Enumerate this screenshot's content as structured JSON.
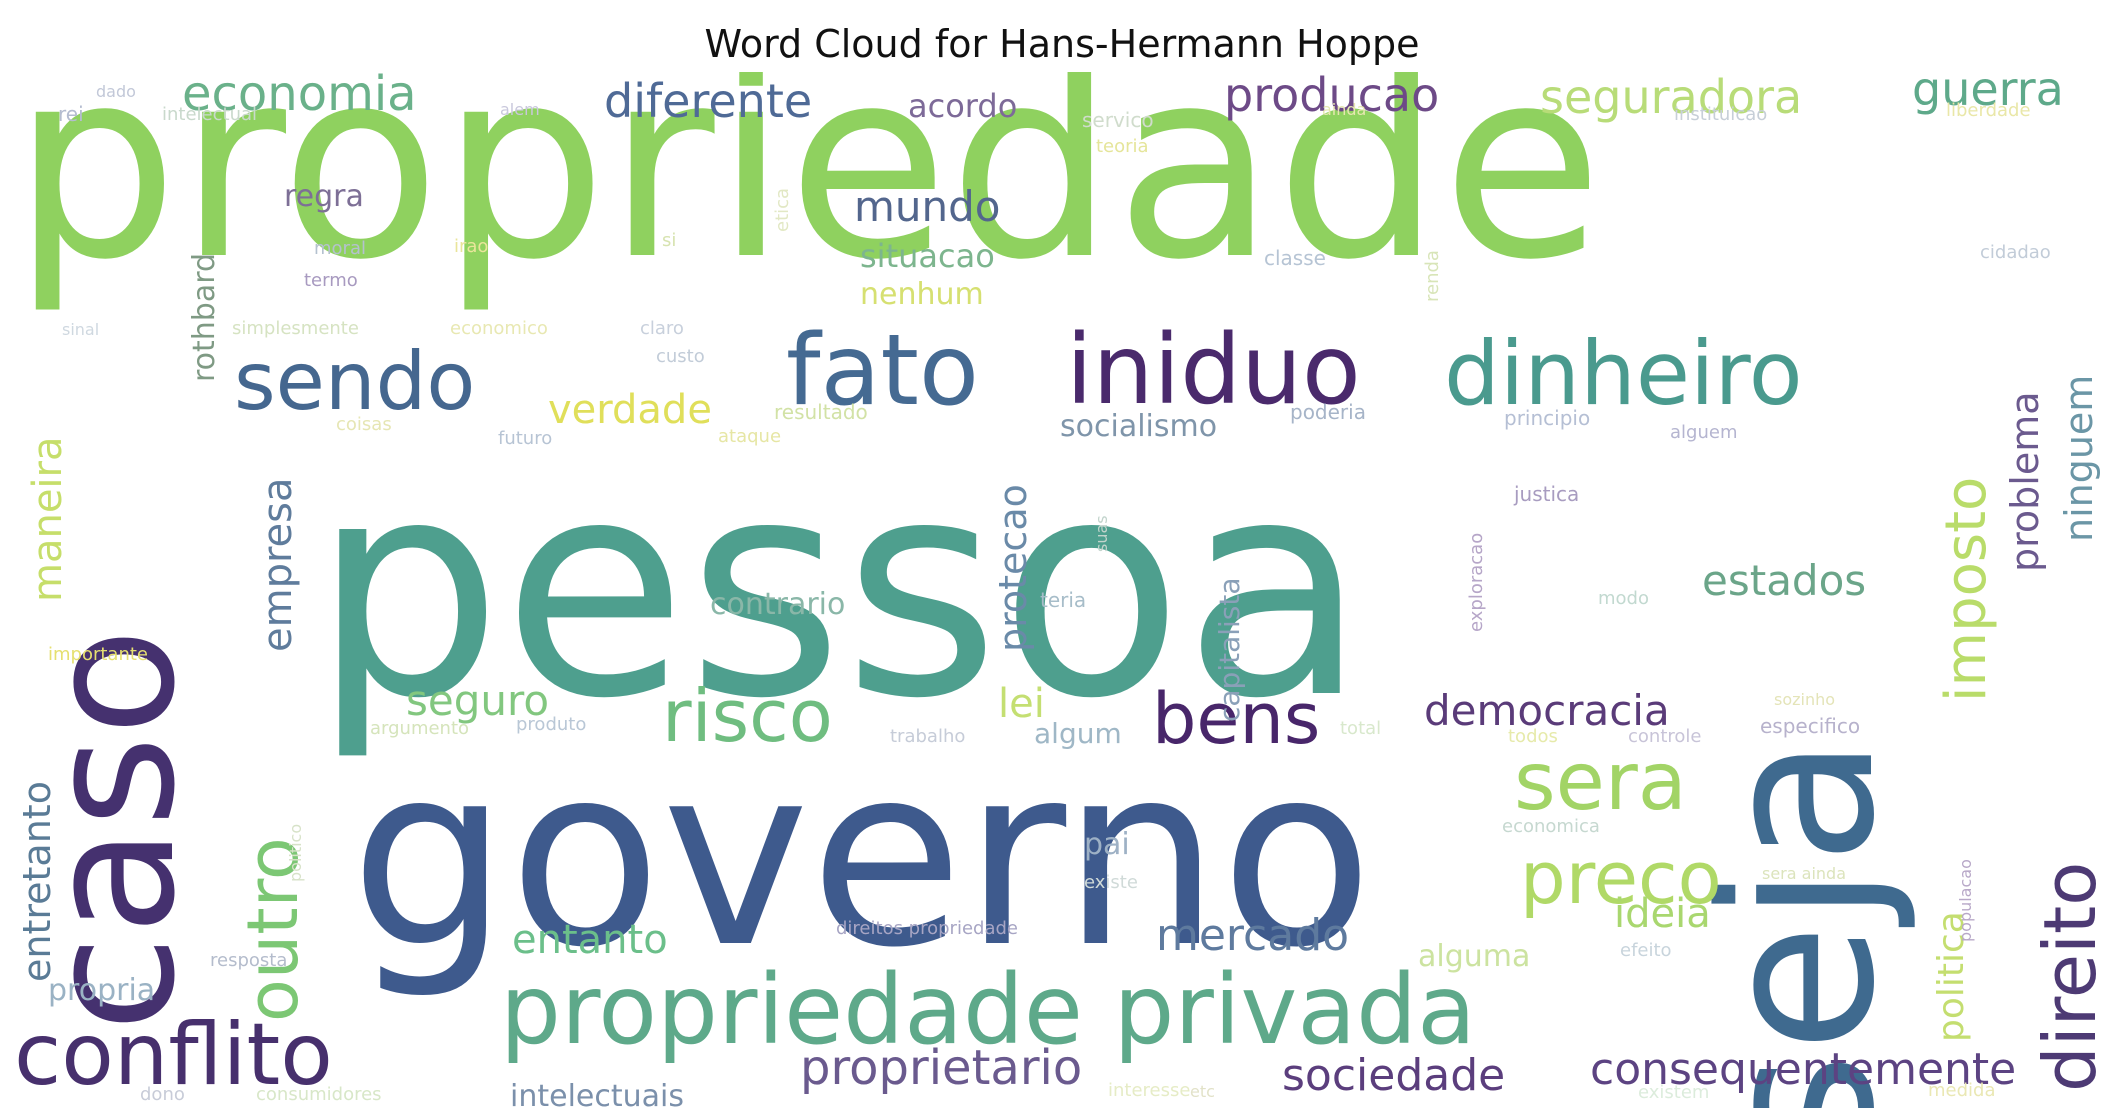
{
  "title": "Word Cloud for Hans-Hermann Hoppe",
  "words": [
    {
      "text": "propriedade",
      "color": "#8fd15f"
    },
    {
      "text": "pessoa",
      "color": "#4e9f8e"
    },
    {
      "text": "governo",
      "color": "#3e5a8d"
    },
    {
      "text": "caso",
      "color": "#45316f"
    },
    {
      "text": "seja",
      "color": "#3f6a8f"
    },
    {
      "text": "propriedade privada",
      "color": "#5ea98a"
    },
    {
      "text": "fato",
      "color": "#456a92"
    },
    {
      "text": "iniduo",
      "color": "#4a2a6c"
    },
    {
      "text": "dinheiro",
      "color": "#4a9a8e"
    },
    {
      "text": "sendo",
      "color": "#45678f"
    },
    {
      "text": "conflito",
      "color": "#47306d"
    },
    {
      "text": "risco",
      "color": "#6fbd80"
    },
    {
      "text": "bens",
      "color": "#48266a"
    },
    {
      "text": "sera",
      "color": "#a2d466"
    },
    {
      "text": "preco",
      "color": "#b0d967"
    },
    {
      "text": "outro",
      "color": "#7cc774"
    },
    {
      "text": "direito",
      "color": "#4d3a74"
    },
    {
      "text": "imposto",
      "color": "#b9dc6a"
    },
    {
      "text": "economia",
      "color": "#6ab18a"
    },
    {
      "text": "diferente",
      "color": "#4f6a96"
    },
    {
      "text": "producao",
      "color": "#6d4a87"
    },
    {
      "text": "seguradora",
      "color": "#b8dc78"
    },
    {
      "text": "guerra",
      "color": "#5ea98a"
    },
    {
      "text": "mundo",
      "color": "#53668d"
    },
    {
      "text": "estados",
      "color": "#6ba589"
    },
    {
      "text": "democracia",
      "color": "#5a3b79"
    },
    {
      "text": "mercado",
      "color": "#5e7a9e"
    },
    {
      "text": "sociedade",
      "color": "#5b3e7d"
    },
    {
      "text": "consequentemente",
      "color": "#5c4382"
    },
    {
      "text": "proprietario",
      "color": "#6a5a8e"
    },
    {
      "text": "verdade",
      "color": "#e0df5a"
    },
    {
      "text": "entanto",
      "color": "#6bbf8a"
    },
    {
      "text": "seguro",
      "color": "#82c77f"
    },
    {
      "text": "empresa",
      "color": "#5f7c9c"
    },
    {
      "text": "maneira",
      "color": "#c6de6a"
    },
    {
      "text": "entretanto",
      "color": "#5a7b96"
    },
    {
      "text": "problema",
      "color": "#6b5a8e"
    },
    {
      "text": "ninguem",
      "color": "#6b96a6"
    },
    {
      "text": "protecao",
      "color": "#6a8aa8"
    },
    {
      "text": "ideia",
      "color": "#a9d76f"
    },
    {
      "text": "lei",
      "color": "#c4df72"
    },
    {
      "text": "politica",
      "color": "#c4de70"
    },
    {
      "text": "capitalista",
      "color": "#8aa0b8"
    },
    {
      "text": "socialismo",
      "color": "#7f95aa"
    },
    {
      "text": "situacao",
      "color": "#7db58e"
    },
    {
      "text": "nenhum",
      "color": "#d6e071"
    },
    {
      "text": "rothbard",
      "color": "#7f9a84"
    },
    {
      "text": "intelectuais",
      "color": "#7b90ab"
    },
    {
      "text": "contrario",
      "color": "#8ab7a8"
    },
    {
      "text": "acordo",
      "color": "#7d6a98"
    },
    {
      "text": "regra",
      "color": "#7d6f96"
    },
    {
      "text": "propria",
      "color": "#9ab2c4"
    },
    {
      "text": "alguma",
      "color": "#cce3a0"
    },
    {
      "text": "algum",
      "color": "#9fb7c6"
    },
    {
      "text": "pai",
      "color": "#9eb1c5"
    },
    {
      "text": "resultado",
      "color": "#d2e2a6"
    },
    {
      "text": "poderia",
      "color": "#a6b4c8"
    },
    {
      "text": "principio",
      "color": "#b5bfd4"
    },
    {
      "text": "alguem",
      "color": "#b5b5d0"
    },
    {
      "text": "justica",
      "color": "#a89cc0"
    },
    {
      "text": "exploracao",
      "color": "#b6a6c8"
    },
    {
      "text": "teria",
      "color": "#a7bdc9"
    },
    {
      "text": "modo",
      "color": "#c2d9d0"
    },
    {
      "text": "classe",
      "color": "#b6c4d4"
    },
    {
      "text": "renda",
      "color": "#d8e5b8"
    },
    {
      "text": "cidadao",
      "color": "#c2ccd8"
    },
    {
      "text": "teoria",
      "color": "#e5e59a"
    },
    {
      "text": "servico",
      "color": "#d0dccc"
    },
    {
      "text": "instituicao",
      "color": "#c7cfd8"
    },
    {
      "text": "liberdade",
      "color": "#e9e7a8"
    },
    {
      "text": "intelectual",
      "color": "#c9d9cc"
    },
    {
      "text": "rei",
      "color": "#b4bcd0"
    },
    {
      "text": "dado",
      "color": "#c2c8d8"
    },
    {
      "text": "moral",
      "color": "#b4c1cf"
    },
    {
      "text": "termo",
      "color": "#a89ac0"
    },
    {
      "text": "irao",
      "color": "#e9e59a"
    },
    {
      "text": "si",
      "color": "#d7e3b0"
    },
    {
      "text": "etica",
      "color": "#e2e8c4"
    },
    {
      "text": "simplesmente",
      "color": "#d6e3c2"
    },
    {
      "text": "economico",
      "color": "#e8e8b2"
    },
    {
      "text": "claro",
      "color": "#c8d0dc"
    },
    {
      "text": "custo",
      "color": "#c2ccd8"
    },
    {
      "text": "coisas",
      "color": "#e6e6b4"
    },
    {
      "text": "futuro",
      "color": "#b7c4d4"
    },
    {
      "text": "ataque",
      "color": "#e6e6a4"
    },
    {
      "text": "importante",
      "color": "#e6e070"
    },
    {
      "text": "argumento",
      "color": "#d5e4bb"
    },
    {
      "text": "produto",
      "color": "#b9c7d6"
    },
    {
      "text": "trabalho",
      "color": "#c6ccd8"
    },
    {
      "text": "total",
      "color": "#d8e8cc"
    },
    {
      "text": "todos",
      "color": "#e6eaaa"
    },
    {
      "text": "controle",
      "color": "#c8c4d8"
    },
    {
      "text": "especifico",
      "color": "#b7b2cc"
    },
    {
      "text": "economica",
      "color": "#c6d8d0"
    },
    {
      "text": "existe",
      "color": "#d0dad8"
    },
    {
      "text": "populacao",
      "color": "#b8a8c8"
    },
    {
      "text": "direitos propriedade",
      "color": "#a7a5c4"
    },
    {
      "text": "resposta",
      "color": "#b4bccc"
    },
    {
      "text": "efeito",
      "color": "#c8d4dc"
    },
    {
      "text": "interesse",
      "color": "#e6ecc6"
    },
    {
      "text": "existem",
      "color": "#dcecdc"
    },
    {
      "text": "medida",
      "color": "#eae8b4"
    },
    {
      "text": "dono",
      "color": "#c8ccd8"
    },
    {
      "text": "consumidores",
      "color": "#d8e7c8"
    },
    {
      "text": "politico",
      "color": "#d7e2c8"
    },
    {
      "text": "sera ainda",
      "color": "#dce4bc"
    },
    {
      "text": "ainda",
      "color": "#e6e7b0"
    },
    {
      "text": "alem",
      "color": "#c9c8dc"
    },
    {
      "text": "sinal",
      "color": "#cfd8e0"
    },
    {
      "text": "suas",
      "color": "#c2d4cc"
    },
    {
      "text": "sozinho",
      "color": "#e4e4b8"
    },
    {
      "text": "etc",
      "color": "#e2e2c8"
    }
  ]
}
